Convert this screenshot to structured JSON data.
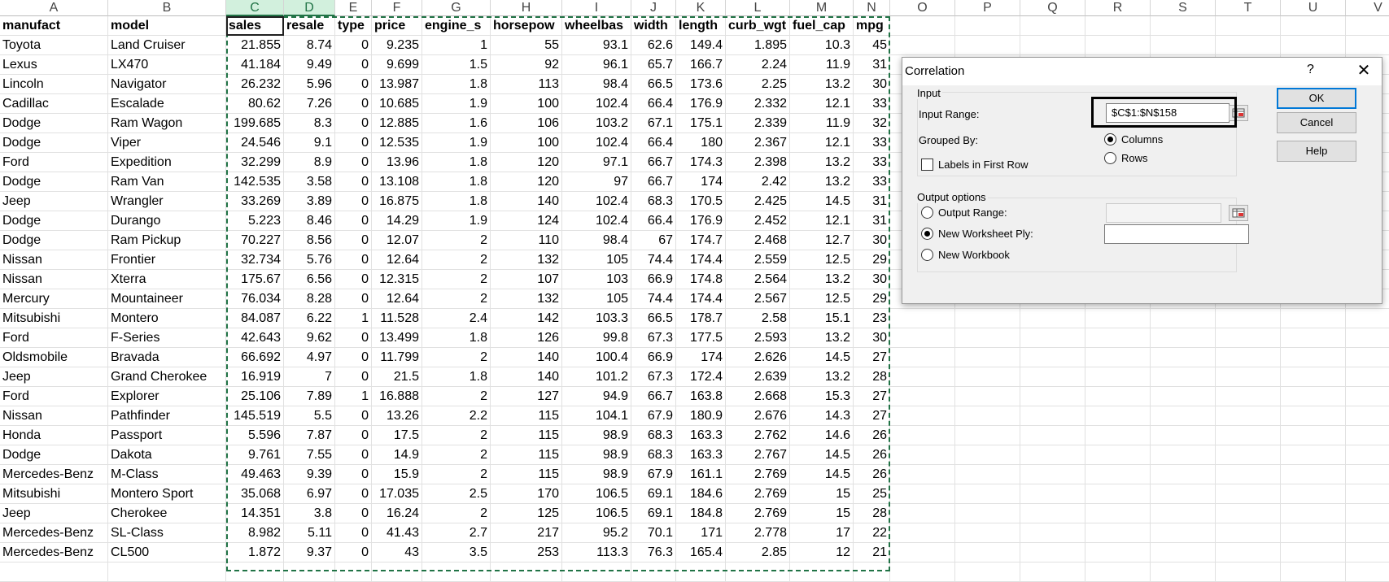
{
  "columns": [
    "A",
    "B",
    "C",
    "D",
    "E",
    "F",
    "G",
    "H",
    "I",
    "J",
    "K",
    "L",
    "M",
    "N",
    "O",
    "P",
    "Q",
    "R",
    "S",
    "T",
    "U",
    "V"
  ],
  "headers": [
    "manufact",
    "model",
    "sales",
    "resale",
    "type",
    "price",
    "engine_s",
    "horsepow",
    "wheelbas",
    "width",
    "length",
    "curb_wgt",
    "fuel_cap",
    "mpg"
  ],
  "rows": [
    [
      "Toyota",
      "Land Cruiser",
      "21.855",
      "8.74",
      "0",
      "9.235",
      "1",
      "55",
      "93.1",
      "62.6",
      "149.4",
      "1.895",
      "10.3",
      "45"
    ],
    [
      "Lexus",
      "LX470",
      "41.184",
      "9.49",
      "0",
      "9.699",
      "1.5",
      "92",
      "96.1",
      "65.7",
      "166.7",
      "2.24",
      "11.9",
      "31"
    ],
    [
      "Lincoln",
      "Navigator",
      "26.232",
      "5.96",
      "0",
      "13.987",
      "1.8",
      "113",
      "98.4",
      "66.5",
      "173.6",
      "2.25",
      "13.2",
      "30"
    ],
    [
      "Cadillac",
      "Escalade",
      "80.62",
      "7.26",
      "0",
      "10.685",
      "1.9",
      "100",
      "102.4",
      "66.4",
      "176.9",
      "2.332",
      "12.1",
      "33"
    ],
    [
      "Dodge",
      "Ram Wagon",
      "199.685",
      "8.3",
      "0",
      "12.885",
      "1.6",
      "106",
      "103.2",
      "67.1",
      "175.1",
      "2.339",
      "11.9",
      "32"
    ],
    [
      "Dodge",
      "Viper",
      "24.546",
      "9.1",
      "0",
      "12.535",
      "1.9",
      "100",
      "102.4",
      "66.4",
      "180",
      "2.367",
      "12.1",
      "33"
    ],
    [
      "Ford",
      "Expedition",
      "32.299",
      "8.9",
      "0",
      "13.96",
      "1.8",
      "120",
      "97.1",
      "66.7",
      "174.3",
      "2.398",
      "13.2",
      "33"
    ],
    [
      "Dodge",
      "Ram Van",
      "142.535",
      "3.58",
      "0",
      "13.108",
      "1.8",
      "120",
      "97",
      "66.7",
      "174",
      "2.42",
      "13.2",
      "33"
    ],
    [
      "Jeep",
      "Wrangler",
      "33.269",
      "3.89",
      "0",
      "16.875",
      "1.8",
      "140",
      "102.4",
      "68.3",
      "170.5",
      "2.425",
      "14.5",
      "31"
    ],
    [
      "Dodge",
      "Durango",
      "5.223",
      "8.46",
      "0",
      "14.29",
      "1.9",
      "124",
      "102.4",
      "66.4",
      "176.9",
      "2.452",
      "12.1",
      "31"
    ],
    [
      "Dodge",
      "Ram Pickup",
      "70.227",
      "8.56",
      "0",
      "12.07",
      "2",
      "110",
      "98.4",
      "67",
      "174.7",
      "2.468",
      "12.7",
      "30"
    ],
    [
      "Nissan",
      "Frontier",
      "32.734",
      "5.76",
      "0",
      "12.64",
      "2",
      "132",
      "105",
      "74.4",
      "174.4",
      "2.559",
      "12.5",
      "29"
    ],
    [
      "Nissan",
      "Xterra",
      "175.67",
      "6.56",
      "0",
      "12.315",
      "2",
      "107",
      "103",
      "66.9",
      "174.8",
      "2.564",
      "13.2",
      "30"
    ],
    [
      "Mercury",
      "Mountaineer",
      "76.034",
      "8.28",
      "0",
      "12.64",
      "2",
      "132",
      "105",
      "74.4",
      "174.4",
      "2.567",
      "12.5",
      "29"
    ],
    [
      "Mitsubishi",
      "Montero",
      "84.087",
      "6.22",
      "1",
      "11.528",
      "2.4",
      "142",
      "103.3",
      "66.5",
      "178.7",
      "2.58",
      "15.1",
      "23"
    ],
    [
      "Ford",
      "F-Series",
      "42.643",
      "9.62",
      "0",
      "13.499",
      "1.8",
      "126",
      "99.8",
      "67.3",
      "177.5",
      "2.593",
      "13.2",
      "30"
    ],
    [
      "Oldsmobile",
      "Bravada",
      "66.692",
      "4.97",
      "0",
      "11.799",
      "2",
      "140",
      "100.4",
      "66.9",
      "174",
      "2.626",
      "14.5",
      "27"
    ],
    [
      "Jeep",
      "Grand Cherokee",
      "16.919",
      "7",
      "0",
      "21.5",
      "1.8",
      "140",
      "101.2",
      "67.3",
      "172.4",
      "2.639",
      "13.2",
      "28"
    ],
    [
      "Ford",
      "Explorer",
      "25.106",
      "7.89",
      "1",
      "16.888",
      "2",
      "127",
      "94.9",
      "66.7",
      "163.8",
      "2.668",
      "15.3",
      "27"
    ],
    [
      "Nissan",
      "Pathfinder",
      "145.519",
      "5.5",
      "0",
      "13.26",
      "2.2",
      "115",
      "104.1",
      "67.9",
      "180.9",
      "2.676",
      "14.3",
      "27"
    ],
    [
      "Honda",
      "Passport",
      "5.596",
      "7.87",
      "0",
      "17.5",
      "2",
      "115",
      "98.9",
      "68.3",
      "163.3",
      "2.762",
      "14.6",
      "26"
    ],
    [
      "Dodge",
      "Dakota",
      "9.761",
      "7.55",
      "0",
      "14.9",
      "2",
      "115",
      "98.9",
      "68.3",
      "163.3",
      "2.767",
      "14.5",
      "26"
    ],
    [
      "Mercedes-Benz",
      "M-Class",
      "49.463",
      "9.39",
      "0",
      "15.9",
      "2",
      "115",
      "98.9",
      "67.9",
      "161.1",
      "2.769",
      "14.5",
      "26"
    ],
    [
      "Mitsubishi",
      "Montero Sport",
      "35.068",
      "6.97",
      "0",
      "17.035",
      "2.5",
      "170",
      "106.5",
      "69.1",
      "184.6",
      "2.769",
      "15",
      "25"
    ],
    [
      "Jeep",
      "Cherokee",
      "14.351",
      "3.8",
      "0",
      "16.24",
      "2",
      "125",
      "106.5",
      "69.1",
      "184.8",
      "2.769",
      "15",
      "28"
    ],
    [
      "Mercedes-Benz",
      "SL-Class",
      "8.982",
      "5.11",
      "0",
      "41.43",
      "2.7",
      "217",
      "95.2",
      "70.1",
      "171",
      "2.778",
      "17",
      "22"
    ],
    [
      "Mercedes-Benz",
      "CL500",
      "1.872",
      "9.37",
      "0",
      "43",
      "3.5",
      "253",
      "113.3",
      "76.3",
      "165.4",
      "2.85",
      "12",
      "21"
    ]
  ],
  "dialog": {
    "title": "Correlation",
    "help_glyph": "?",
    "close_glyph": "✕",
    "input_group": "Input",
    "input_range_label": "Input Range:",
    "input_range_value": "$C$1:$N$158",
    "grouped_by_label": "Grouped By:",
    "columns_label": "Columns",
    "rows_label": "Rows",
    "grouped_by_selected": "Columns",
    "labels_first_row_label": "Labels in First Row",
    "labels_first_row_checked": false,
    "output_group": "Output options",
    "output_range_label": "Output Range:",
    "output_range_value": "",
    "new_worksheet_label": "New Worksheet Ply:",
    "new_worksheet_value": "",
    "new_workbook_label": "New Workbook",
    "output_selected": "New Worksheet Ply",
    "ok_label": "OK",
    "cancel_label": "Cancel",
    "help_label": "Help"
  }
}
